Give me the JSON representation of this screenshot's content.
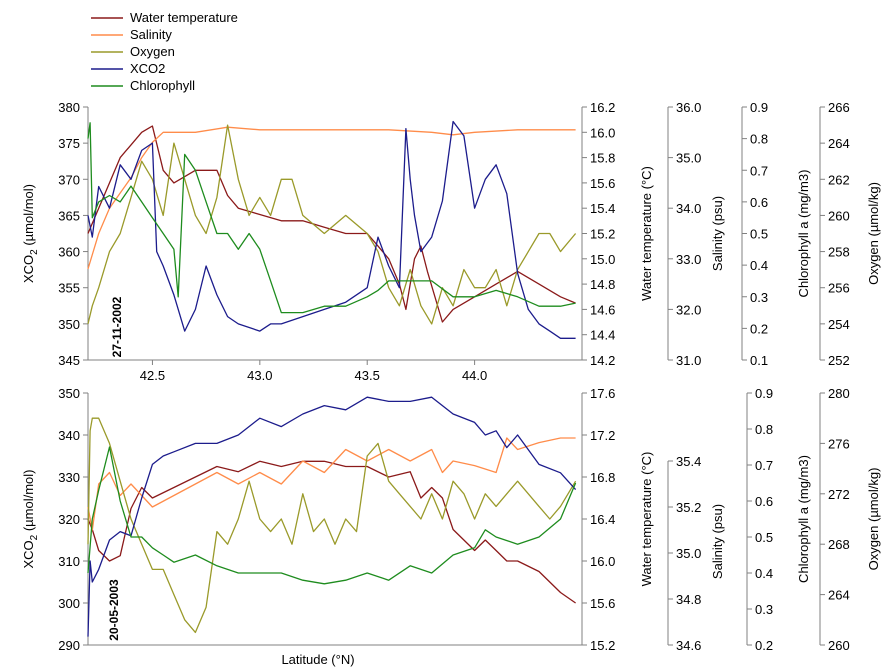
{
  "legend": [
    {
      "label": "Water temperature",
      "color": "#8b1a1a"
    },
    {
      "label": "Salinity",
      "color": "#ff8c4a"
    },
    {
      "label": "Oxygen",
      "color": "#9a9a2a"
    },
    {
      "label": "XCO2",
      "color": "#1c1c8c"
    },
    {
      "label": "Chlorophyll",
      "color": "#1e8c1e"
    }
  ],
  "xlabel": "Latitude (°N)",
  "chart_data": [
    {
      "type": "line",
      "date_label": "27-11-2002",
      "xlim": [
        42.2,
        44.5
      ],
      "x_ticks": [
        "42.5",
        "43.0",
        "43.5",
        "44.0"
      ],
      "y_axes": {
        "xco2": {
          "label": "XCO2 (µmol/mol)",
          "label_main": "XCO",
          "label_sub": "2",
          "label_rest": " (µmol/mol)",
          "range": [
            345,
            380
          ],
          "ticks": [
            "345",
            "350",
            "355",
            "360",
            "365",
            "370",
            "375",
            "380"
          ]
        },
        "temp": {
          "label": "Water temperature (°C)",
          "range": [
            14.2,
            16.2
          ],
          "ticks": [
            "14.2",
            "14.4",
            "14.6",
            "14.8",
            "15.0",
            "15.2",
            "15.4",
            "15.6",
            "15.8",
            "16.0",
            "16.2"
          ]
        },
        "sal": {
          "label": "Salinity (psu)",
          "range": [
            31.0,
            36.0
          ],
          "ticks": [
            "31.0",
            "32.0",
            "33.0",
            "34.0",
            "35.0",
            "36.0"
          ]
        },
        "chl": {
          "label": "Chlorophyll a (mg/m3)",
          "range": [
            0.1,
            0.9
          ],
          "ticks": [
            "0.1",
            "0.2",
            "0.3",
            "0.4",
            "0.5",
            "0.6",
            "0.7",
            "0.8",
            "0.9"
          ]
        },
        "oxy": {
          "label": "Oxygen (µmol/kg)",
          "range": [
            252,
            266
          ],
          "ticks": [
            "252",
            "254",
            "256",
            "258",
            "260",
            "262",
            "264",
            "266"
          ]
        }
      },
      "series": [
        {
          "name": "Water temperature",
          "axis": "temp",
          "color": "#8b1a1a",
          "x": [
            42.2,
            42.25,
            42.3,
            42.35,
            42.4,
            42.45,
            42.5,
            42.55,
            42.6,
            42.7,
            42.8,
            42.85,
            42.9,
            43.0,
            43.1,
            43.2,
            43.3,
            43.4,
            43.5,
            43.55,
            43.6,
            43.65,
            43.68,
            43.72,
            43.75,
            43.78,
            43.85,
            43.9,
            44.0,
            44.1,
            44.2,
            44.3,
            44.4,
            44.47
          ],
          "y": [
            15.2,
            15.4,
            15.6,
            15.8,
            15.9,
            16.0,
            16.05,
            15.7,
            15.6,
            15.7,
            15.7,
            15.5,
            15.4,
            15.35,
            15.3,
            15.3,
            15.25,
            15.2,
            15.2,
            15.1,
            15.0,
            14.8,
            14.6,
            15.0,
            15.1,
            14.9,
            14.5,
            14.6,
            14.7,
            14.8,
            14.9,
            14.8,
            14.7,
            14.65
          ]
        },
        {
          "name": "Salinity",
          "axis": "sal",
          "color": "#ff8c4a",
          "x": [
            42.2,
            42.25,
            42.3,
            42.35,
            42.4,
            42.45,
            42.5,
            42.55,
            42.7,
            42.85,
            43.0,
            43.3,
            43.6,
            43.8,
            43.9,
            44.0,
            44.2,
            44.47
          ],
          "y": [
            32.8,
            33.5,
            34.0,
            34.3,
            34.6,
            35.0,
            35.3,
            35.5,
            35.5,
            35.6,
            35.55,
            35.55,
            35.55,
            35.5,
            35.45,
            35.5,
            35.55,
            35.55
          ]
        },
        {
          "name": "Oxygen",
          "axis": "oxy",
          "color": "#9a9a2a",
          "x": [
            42.2,
            42.22,
            42.25,
            42.3,
            42.35,
            42.4,
            42.45,
            42.5,
            42.55,
            42.6,
            42.65,
            42.7,
            42.75,
            42.8,
            42.85,
            42.9,
            42.95,
            43.0,
            43.05,
            43.1,
            43.15,
            43.2,
            43.3,
            43.4,
            43.5,
            43.55,
            43.6,
            43.65,
            43.7,
            43.75,
            43.8,
            43.85,
            43.9,
            43.95,
            44.0,
            44.05,
            44.1,
            44.15,
            44.2,
            44.25,
            44.3,
            44.35,
            44.4,
            44.47
          ],
          "y": [
            254,
            255,
            256,
            258,
            259,
            261,
            263,
            262,
            260,
            264,
            262,
            260,
            259,
            261,
            265,
            262,
            260,
            261,
            260,
            262,
            262,
            260,
            259,
            260,
            259,
            258,
            256,
            255,
            257,
            255,
            254,
            256,
            255,
            257,
            256,
            256,
            257,
            255,
            257,
            258,
            259,
            259,
            258,
            259
          ]
        },
        {
          "name": "XCO2",
          "axis": "xco2",
          "color": "#1c1c8c",
          "x": [
            42.2,
            42.22,
            42.25,
            42.3,
            42.35,
            42.4,
            42.45,
            42.5,
            42.52,
            42.55,
            42.6,
            42.65,
            42.7,
            42.75,
            42.8,
            42.85,
            42.9,
            43.0,
            43.05,
            43.1,
            43.2,
            43.3,
            43.4,
            43.5,
            43.55,
            43.6,
            43.65,
            43.68,
            43.7,
            43.72,
            43.75,
            43.8,
            43.85,
            43.9,
            43.95,
            44.0,
            44.05,
            44.1,
            44.15,
            44.2,
            44.25,
            44.3,
            44.35,
            44.4,
            44.47
          ],
          "y": [
            365,
            362,
            369,
            366,
            372,
            370,
            374,
            375,
            360,
            358,
            354,
            349,
            352,
            358,
            354,
            351,
            350,
            349,
            350,
            350,
            351,
            352,
            353,
            355,
            362,
            358,
            355,
            377,
            370,
            365,
            360,
            362,
            367,
            378,
            376,
            366,
            370,
            372,
            368,
            357,
            352,
            350,
            349,
            348,
            348
          ]
        },
        {
          "name": "Chlorophyll",
          "axis": "chl",
          "color": "#1e8c1e",
          "x": [
            42.2,
            42.21,
            42.22,
            42.25,
            42.3,
            42.35,
            42.4,
            42.45,
            42.5,
            42.55,
            42.6,
            42.62,
            42.65,
            42.7,
            42.75,
            42.8,
            42.85,
            42.9,
            42.95,
            43.0,
            43.05,
            43.1,
            43.2,
            43.3,
            43.4,
            43.5,
            43.55,
            43.6,
            43.7,
            43.8,
            43.9,
            44.0,
            44.1,
            44.2,
            44.3,
            44.4,
            44.47
          ],
          "y": [
            0.8,
            0.85,
            0.55,
            0.6,
            0.62,
            0.6,
            0.65,
            0.6,
            0.55,
            0.5,
            0.45,
            0.3,
            0.75,
            0.7,
            0.6,
            0.5,
            0.5,
            0.45,
            0.5,
            0.45,
            0.35,
            0.25,
            0.25,
            0.27,
            0.27,
            0.3,
            0.32,
            0.35,
            0.35,
            0.35,
            0.3,
            0.3,
            0.32,
            0.3,
            0.27,
            0.27,
            0.28
          ]
        }
      ]
    },
    {
      "type": "line",
      "date_label": "20-05-2003",
      "xlim": [
        42.2,
        44.5
      ],
      "x_ticks": [],
      "y_axes": {
        "xco2": {
          "label": "XCO2 (µmol/mol)",
          "label_main": "XCO",
          "label_sub": "2",
          "label_rest": " (µmol/mol)",
          "range": [
            290,
            350
          ],
          "ticks": [
            "290",
            "300",
            "310",
            "320",
            "330",
            "340",
            "350"
          ]
        },
        "temp": {
          "label": "Water temperature (°C)",
          "range": [
            15.2,
            17.6
          ],
          "ticks": [
            "15.2",
            "15.6",
            "16.0",
            "16.4",
            "16.8",
            "17.2",
            "17.6"
          ]
        },
        "sal": {
          "label": "Salinity (psu)",
          "range": [
            34.6,
            35.5
          ],
          "ticks": [
            "34.6",
            "34.8",
            "35.0",
            "35.2",
            "35.4"
          ]
        },
        "chl": {
          "label": "Chlorophyll a (mg/m3)",
          "range": [
            0.2,
            0.9
          ],
          "ticks": [
            "0.2",
            "0.3",
            "0.4",
            "0.5",
            "0.6",
            "0.7",
            "0.8",
            "0.9"
          ]
        },
        "oxy": {
          "label": "Oxygen (µmol/kg)",
          "range": [
            260,
            280
          ],
          "ticks": [
            "260",
            "264",
            "268",
            "272",
            "276",
            "280"
          ]
        }
      },
      "series": [
        {
          "name": "Water temperature",
          "axis": "temp",
          "color": "#8b1a1a",
          "x": [
            42.2,
            42.22,
            42.25,
            42.3,
            42.35,
            42.4,
            42.45,
            42.5,
            42.6,
            42.7,
            42.8,
            42.9,
            43.0,
            43.1,
            43.2,
            43.3,
            43.4,
            43.5,
            43.6,
            43.7,
            43.75,
            43.8,
            43.85,
            43.9,
            44.0,
            44.05,
            44.1,
            44.15,
            44.2,
            44.3,
            44.4,
            44.47
          ],
          "y": [
            16.4,
            16.3,
            16.1,
            16.0,
            16.05,
            16.5,
            16.7,
            16.6,
            16.7,
            16.8,
            16.9,
            16.85,
            16.95,
            16.9,
            16.95,
            16.95,
            16.9,
            16.9,
            16.8,
            16.85,
            16.6,
            16.7,
            16.6,
            16.3,
            16.1,
            16.2,
            16.1,
            16.0,
            16.0,
            15.9,
            15.7,
            15.6
          ]
        },
        {
          "name": "Salinity",
          "axis": "sal",
          "color": "#ff8c4a",
          "x": [
            42.2,
            42.22,
            42.25,
            42.3,
            42.35,
            42.4,
            42.45,
            42.5,
            42.6,
            42.7,
            42.8,
            42.9,
            43.0,
            43.1,
            43.2,
            43.3,
            43.35,
            43.4,
            43.5,
            43.6,
            43.7,
            43.8,
            43.85,
            43.9,
            44.0,
            44.1,
            44.15,
            44.2,
            44.3,
            44.4,
            44.47
          ],
          "y": [
            35.2,
            35.1,
            35.3,
            35.35,
            35.25,
            35.3,
            35.25,
            35.2,
            35.25,
            35.3,
            35.35,
            35.3,
            35.35,
            35.3,
            35.4,
            35.35,
            35.4,
            35.45,
            35.4,
            35.45,
            35.4,
            35.45,
            35.35,
            35.4,
            35.38,
            35.35,
            35.5,
            35.45,
            35.48,
            35.5,
            35.5
          ]
        },
        {
          "name": "Oxygen",
          "axis": "oxy",
          "color": "#9a9a2a",
          "x": [
            42.2,
            42.21,
            42.22,
            42.25,
            42.3,
            42.35,
            42.4,
            42.45,
            42.5,
            42.55,
            42.6,
            42.65,
            42.7,
            42.75,
            42.8,
            42.85,
            42.9,
            42.95,
            43.0,
            43.05,
            43.1,
            43.15,
            43.2,
            43.25,
            43.3,
            43.35,
            43.4,
            43.45,
            43.5,
            43.55,
            43.6,
            43.65,
            43.7,
            43.75,
            43.8,
            43.85,
            43.9,
            43.95,
            44.0,
            44.05,
            44.1,
            44.15,
            44.2,
            44.25,
            44.3,
            44.35,
            44.4,
            44.47
          ],
          "y": [
            268,
            277,
            278,
            278,
            276,
            273,
            270,
            268,
            266,
            266,
            264,
            262,
            261,
            263,
            269,
            268,
            270,
            273,
            270,
            269,
            270,
            268,
            272,
            269,
            270,
            268,
            270,
            269,
            275,
            276,
            273,
            272,
            271,
            270,
            272,
            270,
            273,
            272,
            270,
            272,
            271,
            272,
            273,
            272,
            271,
            270,
            271,
            273
          ]
        },
        {
          "name": "XCO2",
          "axis": "xco2",
          "color": "#1c1c8c",
          "x": [
            42.2,
            42.21,
            42.22,
            42.25,
            42.3,
            42.35,
            42.4,
            42.45,
            42.5,
            42.55,
            42.6,
            42.7,
            42.8,
            42.9,
            43.0,
            43.1,
            43.2,
            43.3,
            43.4,
            43.5,
            43.6,
            43.7,
            43.8,
            43.9,
            44.0,
            44.05,
            44.1,
            44.15,
            44.2,
            44.3,
            44.4,
            44.47
          ],
          "y": [
            292,
            310,
            305,
            308,
            315,
            317,
            316,
            325,
            333,
            335,
            336,
            338,
            338,
            340,
            344,
            342,
            345,
            347,
            346,
            349,
            348,
            348,
            349,
            345,
            343,
            340,
            341,
            337,
            340,
            333,
            331,
            327
          ]
        },
        {
          "name": "Chlorophyll",
          "axis": "chl",
          "color": "#1e8c1e",
          "x": [
            42.2,
            42.22,
            42.25,
            42.3,
            42.35,
            42.4,
            42.45,
            42.5,
            42.55,
            42.6,
            42.7,
            42.8,
            42.9,
            43.0,
            43.1,
            43.2,
            43.3,
            43.4,
            43.5,
            43.6,
            43.7,
            43.8,
            43.9,
            44.0,
            44.05,
            44.1,
            44.2,
            44.3,
            44.4,
            44.47
          ],
          "y": [
            0.4,
            0.55,
            0.63,
            0.75,
            0.6,
            0.5,
            0.5,
            0.47,
            0.45,
            0.43,
            0.45,
            0.42,
            0.4,
            0.4,
            0.4,
            0.38,
            0.37,
            0.38,
            0.4,
            0.38,
            0.42,
            0.4,
            0.45,
            0.47,
            0.52,
            0.5,
            0.48,
            0.5,
            0.55,
            0.65
          ]
        }
      ]
    }
  ]
}
